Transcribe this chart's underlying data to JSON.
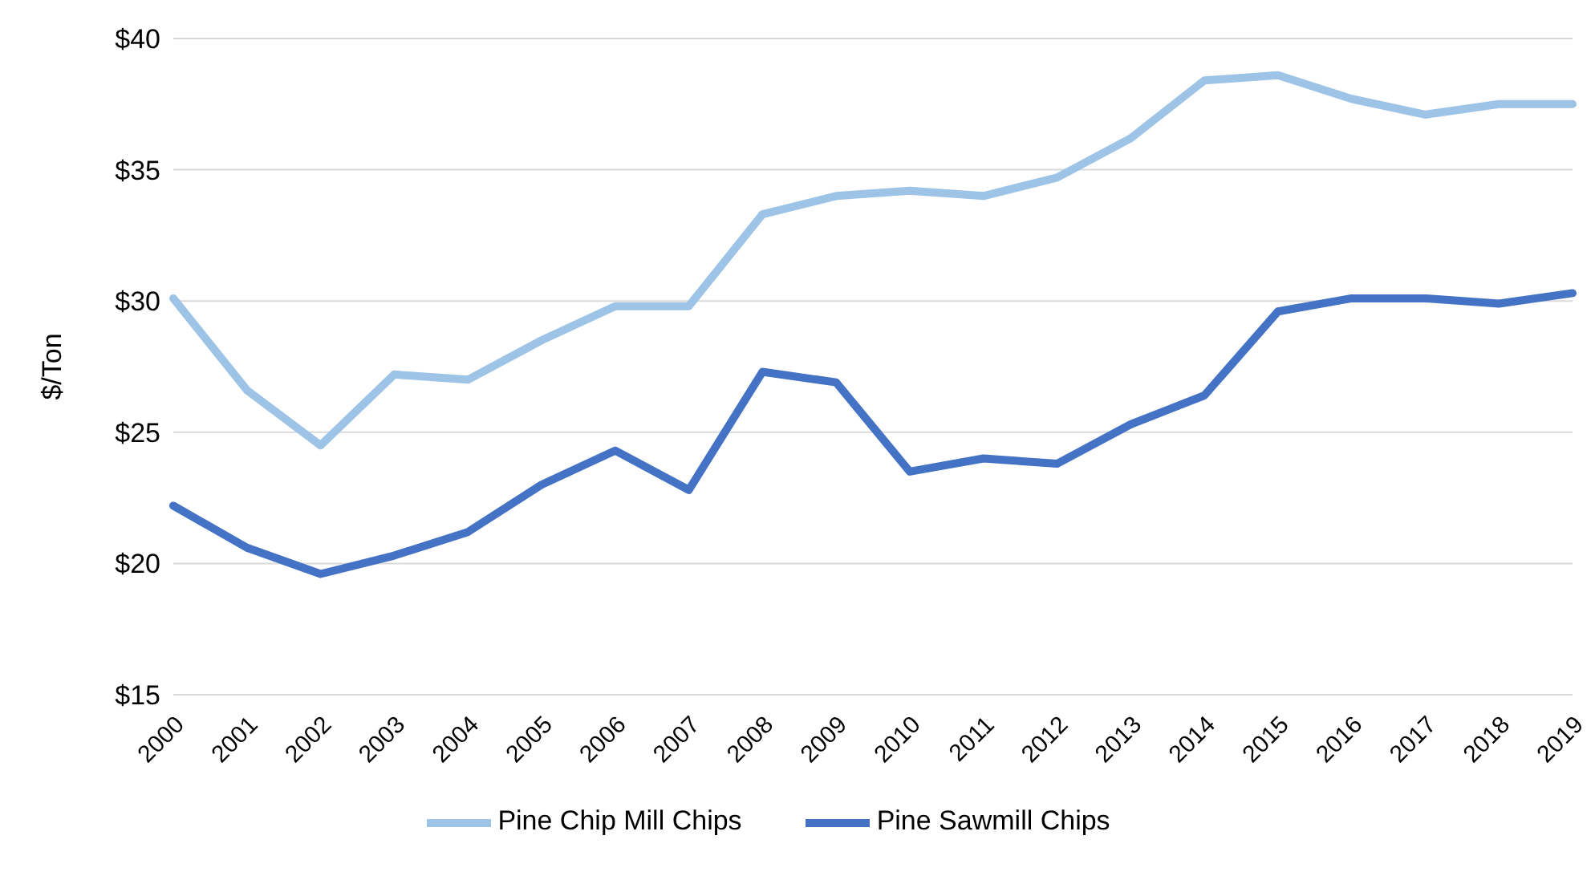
{
  "chart_data": {
    "type": "line",
    "ylabel": "$/Ton",
    "categories": [
      "2000",
      "2001",
      "2002",
      "2003",
      "2004",
      "2005",
      "2006",
      "2007",
      "2008",
      "2009",
      "2010",
      "2011",
      "2012",
      "2013",
      "2014",
      "2015",
      "2016",
      "2017",
      "2018",
      "2019"
    ],
    "series": [
      {
        "name": "Pine Sawmill Chips",
        "color": "#4472c4",
        "values": [
          22.2,
          20.6,
          19.6,
          20.3,
          21.2,
          23.0,
          24.3,
          22.8,
          27.3,
          26.9,
          23.5,
          24.0,
          23.8,
          25.3,
          26.4,
          29.6,
          30.1,
          30.1,
          29.9,
          30.3
        ]
      },
      {
        "name": "Pine Chip Mill Chips",
        "color": "#9dc3e6",
        "values": [
          30.1,
          26.6,
          24.5,
          27.2,
          27.0,
          28.5,
          29.8,
          29.8,
          33.3,
          34.0,
          34.2,
          34.0,
          34.7,
          36.2,
          38.4,
          38.6,
          37.7,
          37.1,
          37.5,
          37.5
        ]
      }
    ],
    "ylim": [
      15,
      40
    ],
    "yticks": [
      {
        "value": 15,
        "label": "$15"
      },
      {
        "value": 20,
        "label": "$20"
      },
      {
        "value": 25,
        "label": "$25"
      },
      {
        "value": 30,
        "label": "$30"
      },
      {
        "value": 35,
        "label": "$35"
      },
      {
        "value": 40,
        "label": "$40"
      }
    ],
    "grid": "y",
    "legend": "bottom",
    "marker": "none",
    "line_style": "solid"
  }
}
